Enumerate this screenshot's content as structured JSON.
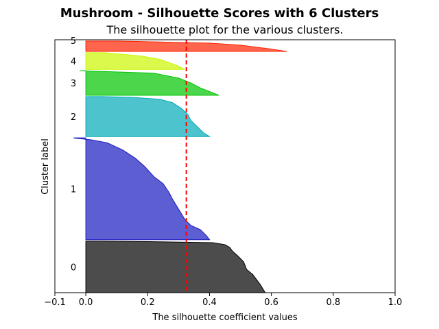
{
  "chart_data": {
    "type": "silhouette",
    "suptitle": "Mushroom - Silhouette Scores with 6 Clusters",
    "title": "The silhouette plot for the various clusters.",
    "xlabel": "The silhouette coefficient values",
    "ylabel": "Cluster label",
    "xlim": [
      -0.1,
      1.0
    ],
    "x_ticks": [
      -0.1,
      0.0,
      0.2,
      0.4,
      0.6,
      0.8,
      1.0
    ],
    "x_tick_labels": [
      "−0.1",
      "0.0",
      "0.2",
      "0.4",
      "0.6",
      "0.8",
      "1.0"
    ],
    "average_silhouette": 0.325,
    "average_line_color": "#ff0000",
    "ylim": [
      0,
      98
    ],
    "clusters": [
      {
        "label": "0",
        "color": "#000000",
        "y_start": 0,
        "y_end": 20,
        "profile": [
          [
            0,
            0.58
          ],
          [
            0.15,
            0.565
          ],
          [
            0.35,
            0.54
          ],
          [
            0.45,
            0.52
          ],
          [
            0.6,
            0.51
          ],
          [
            0.72,
            0.49
          ],
          [
            0.8,
            0.475
          ],
          [
            0.88,
            0.465
          ],
          [
            0.93,
            0.45
          ],
          [
            0.97,
            0.41
          ],
          [
            0.99,
            0.2
          ],
          [
            1,
            0.05
          ]
        ]
      },
      {
        "label": "1",
        "color": "#1a1ac0",
        "y_start": 20.5,
        "y_end": 60,
        "profile": [
          [
            0,
            0.4
          ],
          [
            0.04,
            0.39
          ],
          [
            0.1,
            0.37
          ],
          [
            0.14,
            0.34
          ],
          [
            0.2,
            0.32
          ],
          [
            0.3,
            0.3
          ],
          [
            0.4,
            0.28
          ],
          [
            0.46,
            0.27
          ],
          [
            0.55,
            0.25
          ],
          [
            0.62,
            0.22
          ],
          [
            0.72,
            0.19
          ],
          [
            0.8,
            0.16
          ],
          [
            0.88,
            0.12
          ],
          [
            0.95,
            0.07
          ],
          [
            0.98,
            0.02
          ],
          [
            0.995,
            -0.03
          ],
          [
            1,
            -0.04
          ]
        ]
      },
      {
        "label": "2",
        "color": "#00aab8",
        "y_start": 60.5,
        "y_end": 76,
        "profile": [
          [
            0,
            0.4
          ],
          [
            0.1,
            0.38
          ],
          [
            0.25,
            0.36
          ],
          [
            0.4,
            0.34
          ],
          [
            0.55,
            0.33
          ],
          [
            0.7,
            0.31
          ],
          [
            0.85,
            0.28
          ],
          [
            0.93,
            0.24
          ],
          [
            0.98,
            0.15
          ],
          [
            1,
            0.05
          ]
        ]
      },
      {
        "label": "3",
        "color": "#00c400",
        "y_start": 76.5,
        "y_end": 86,
        "profile": [
          [
            0,
            0.43
          ],
          [
            0.1,
            0.41
          ],
          [
            0.3,
            0.37
          ],
          [
            0.5,
            0.34
          ],
          [
            0.7,
            0.3
          ],
          [
            0.9,
            0.22
          ],
          [
            1,
            -0.02
          ]
        ]
      },
      {
        "label": "4",
        "color": "#ccf500",
        "y_start": 86.5,
        "y_end": 93,
        "profile": [
          [
            0,
            0.32
          ],
          [
            0.2,
            0.3
          ],
          [
            0.4,
            0.27
          ],
          [
            0.6,
            0.24
          ],
          [
            0.8,
            0.18
          ],
          [
            1,
            0.06
          ]
        ]
      },
      {
        "label": "5",
        "color": "#ff2200",
        "y_start": 93.5,
        "y_end": 97.5,
        "profile": [
          [
            0,
            0.65
          ],
          [
            0.3,
            0.58
          ],
          [
            0.6,
            0.5
          ],
          [
            0.8,
            0.4
          ],
          [
            1,
            0.1
          ]
        ]
      }
    ]
  }
}
